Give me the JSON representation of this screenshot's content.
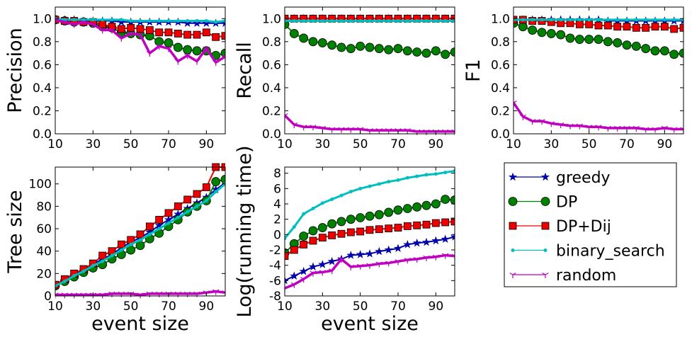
{
  "legend": {
    "entries": [
      {
        "name": "greedy",
        "color": "#0000aa",
        "marker": "star"
      },
      {
        "name": "DP",
        "color": "#008000",
        "marker": "circle"
      },
      {
        "name": "DP+Dij",
        "color": "#ee0000",
        "marker": "square"
      },
      {
        "name": "binary_search",
        "color": "#00bfbf",
        "marker": "dot"
      },
      {
        "name": "random",
        "color": "#bf00bf",
        "marker": "tri"
      }
    ]
  },
  "chart_data": [
    {
      "type": "line",
      "ylabel": "Precision",
      "x": [
        10,
        15,
        20,
        25,
        30,
        35,
        40,
        45,
        50,
        55,
        60,
        65,
        70,
        75,
        80,
        85,
        90,
        95,
        100
      ],
      "xlim": [
        10,
        100
      ],
      "xticks": [
        10,
        30,
        50,
        70,
        90
      ],
      "ylim": [
        0,
        1.1
      ],
      "yticks": [
        {
          "value": 0,
          "label": "0.0"
        },
        0.2,
        0.4,
        0.6,
        0.8,
        {
          "value": 1,
          "label": "1.0"
        }
      ],
      "series": [
        {
          "values": [
            1,
            0.99,
            0.99,
            0.98,
            0.98,
            0.98,
            0.98,
            0.97,
            0.97,
            0.97,
            0.97,
            0.97,
            0.97,
            0.97,
            0.96,
            0.96,
            0.96,
            0.96,
            0.96
          ]
        },
        {
          "values": [
            0.99,
            0.98,
            0.97,
            0.97,
            0.96,
            0.93,
            0.92,
            0.88,
            0.87,
            0.86,
            0.85,
            0.8,
            0.79,
            0.75,
            0.73,
            0.72,
            0.72,
            0.68,
            0.7
          ]
        },
        {
          "values": [
            0.99,
            0.98,
            0.98,
            0.97,
            0.97,
            0.95,
            0.93,
            0.91,
            0.92,
            0.91,
            0.9,
            0.88,
            0.88,
            0.87,
            0.86,
            0.86,
            0.88,
            0.84,
            0.85
          ]
        },
        {
          "values": [
            1,
            0.99,
            0.99,
            0.99,
            0.99,
            0.99,
            0.99,
            0.99,
            0.98,
            0.98,
            0.98,
            0.98,
            0.98,
            0.98,
            0.98,
            0.98,
            0.98,
            0.97,
            0.98
          ]
        },
        {
          "values": [
            0.99,
            0.97,
            0.95,
            0.97,
            0.95,
            0.9,
            0.9,
            0.83,
            0.87,
            0.86,
            0.7,
            0.76,
            0.74,
            0.63,
            0.68,
            0.63,
            0.74,
            0.62,
            0.67
          ]
        }
      ]
    },
    {
      "type": "line",
      "ylabel": "Recall",
      "x": [
        10,
        15,
        20,
        25,
        30,
        35,
        40,
        45,
        50,
        55,
        60,
        65,
        70,
        75,
        80,
        85,
        90,
        95,
        100
      ],
      "xlim": [
        10,
        100
      ],
      "xticks": [
        10,
        30,
        50,
        70,
        90
      ],
      "ylim": [
        0,
        1.1
      ],
      "yticks": [
        {
          "value": 0,
          "label": "0.0"
        },
        0.2,
        0.4,
        0.6,
        0.8,
        {
          "value": 1,
          "label": "1.0"
        }
      ],
      "series": [
        {
          "values": [
            1,
            1,
            1,
            1,
            1,
            1,
            1,
            1,
            1,
            1,
            1,
            1,
            1,
            1,
            1,
            1,
            1,
            1,
            1
          ]
        },
        {
          "values": [
            0.95,
            0.87,
            0.83,
            0.8,
            0.79,
            0.77,
            0.75,
            0.74,
            0.76,
            0.75,
            0.74,
            0.73,
            0.74,
            0.72,
            0.71,
            0.7,
            0.72,
            0.69,
            0.71
          ]
        },
        {
          "values": [
            1,
            1,
            1,
            1,
            1,
            1,
            1,
            1,
            1,
            1,
            1,
            1,
            1,
            1,
            1,
            1,
            1,
            1,
            1
          ]
        },
        {
          "values": [
            0.98,
            0.98,
            0.98,
            0.98,
            0.98,
            0.98,
            0.98,
            0.98,
            0.98,
            0.98,
            0.98,
            0.98,
            0.98,
            0.98,
            0.98,
            0.98,
            0.98,
            0.98,
            0.98
          ]
        },
        {
          "values": [
            0.16,
            0.08,
            0.06,
            0.06,
            0.05,
            0.04,
            0.04,
            0.04,
            0.04,
            0.03,
            0.03,
            0.03,
            0.03,
            0.03,
            0.02,
            0.02,
            0.02,
            0.02,
            0.02
          ]
        }
      ]
    },
    {
      "type": "line",
      "ylabel": "F1",
      "x": [
        10,
        15,
        20,
        25,
        30,
        35,
        40,
        45,
        50,
        55,
        60,
        65,
        70,
        75,
        80,
        85,
        90,
        95,
        100
      ],
      "xlim": [
        10,
        100
      ],
      "xticks": [
        10,
        30,
        50,
        70,
        90
      ],
      "ylim": [
        0,
        1.1
      ],
      "yticks": [
        {
          "value": 0,
          "label": "0.0"
        },
        0.2,
        0.4,
        0.6,
        0.8,
        {
          "value": 1,
          "label": "1.0"
        }
      ],
      "series": [
        {
          "values": [
            0.99,
            0.99,
            0.99,
            0.99,
            0.99,
            0.99,
            0.99,
            0.99,
            0.99,
            0.99,
            0.98,
            0.98,
            0.98,
            0.98,
            0.98,
            0.98,
            0.98,
            0.98,
            0.98
          ]
        },
        {
          "values": [
            0.96,
            0.93,
            0.9,
            0.88,
            0.87,
            0.86,
            0.83,
            0.82,
            0.82,
            0.82,
            0.8,
            0.79,
            0.77,
            0.76,
            0.74,
            0.72,
            0.72,
            0.69,
            0.7
          ]
        },
        {
          "values": [
            0.99,
            0.99,
            0.98,
            0.98,
            0.97,
            0.96,
            0.96,
            0.95,
            0.95,
            0.94,
            0.94,
            0.93,
            0.93,
            0.92,
            0.92,
            0.93,
            0.93,
            0.91,
            0.92
          ]
        },
        {
          "values": [
            0.99,
            0.99,
            0.99,
            0.99,
            0.99,
            0.99,
            0.99,
            0.99,
            0.99,
            0.99,
            0.99,
            0.99,
            0.99,
            0.99,
            0.99,
            0.99,
            0.99,
            0.99,
            0.99
          ]
        },
        {
          "values": [
            0.27,
            0.15,
            0.11,
            0.11,
            0.09,
            0.08,
            0.07,
            0.07,
            0.06,
            0.06,
            0.05,
            0.05,
            0.05,
            0.05,
            0.04,
            0.04,
            0.05,
            0.04,
            0.04
          ]
        }
      ]
    },
    {
      "type": "line",
      "ylabel": "Tree size",
      "xlabel": "event size",
      "x": [
        10,
        15,
        20,
        25,
        30,
        35,
        40,
        45,
        50,
        55,
        60,
        65,
        70,
        75,
        80,
        85,
        90,
        95,
        100
      ],
      "xlim": [
        10,
        100
      ],
      "xticks": [
        10,
        30,
        50,
        70,
        90
      ],
      "ylim": [
        0,
        115
      ],
      "yticks": [
        0,
        20,
        40,
        60,
        80,
        100
      ],
      "series": [
        {
          "values": [
            10,
            14,
            19,
            23,
            28,
            33,
            37,
            43,
            48,
            52,
            57,
            63,
            68,
            73,
            78,
            83,
            88,
            95,
            101
          ]
        },
        {
          "values": [
            9,
            13,
            17,
            21,
            25,
            28,
            33,
            37,
            41,
            45,
            51,
            56,
            62,
            68,
            75,
            80,
            85,
            102,
            104
          ]
        },
        {
          "values": [
            10,
            15,
            20,
            24,
            29,
            36,
            40,
            46,
            50,
            55,
            62,
            68,
            74,
            80,
            86,
            91,
            97,
            115,
            115
          ]
        },
        {
          "values": [
            9,
            13,
            18,
            22,
            27,
            31,
            36,
            41,
            46,
            50,
            55,
            60,
            65,
            70,
            75,
            80,
            85,
            93,
            100
          ]
        },
        {
          "values": [
            1,
            1,
            1,
            1,
            1,
            1,
            2,
            2,
            2,
            1,
            2,
            2,
            2,
            2,
            2,
            2,
            3,
            4,
            3
          ]
        }
      ]
    },
    {
      "type": "line",
      "ylabel": "Log(running time)",
      "xlabel": "event size",
      "x": [
        10,
        15,
        20,
        25,
        30,
        35,
        40,
        45,
        50,
        55,
        60,
        65,
        70,
        75,
        80,
        85,
        90,
        95,
        100
      ],
      "xlim": [
        10,
        100
      ],
      "xticks": [
        10,
        30,
        50,
        70,
        90
      ],
      "ylim": [
        -8,
        8.8
      ],
      "yticks": [
        -8,
        -6,
        -4,
        -2,
        0,
        2,
        4,
        6,
        8
      ],
      "series": [
        {
          "values": [
            -6,
            -5.4,
            -4.8,
            -4.2,
            -3.9,
            -3.5,
            -3.2,
            -2.7,
            -2.6,
            -2.5,
            -2.2,
            -2,
            -1.8,
            -1.3,
            -1.1,
            -1,
            -0.8,
            -0.6,
            -0.3
          ]
        },
        {
          "values": [
            -2.4,
            -1.2,
            -0.2,
            0.5,
            0.9,
            1.4,
            1.7,
            2,
            2.2,
            2.4,
            2.6,
            2.9,
            3.2,
            3.4,
            3.6,
            3.8,
            4,
            4.6,
            4.5
          ]
        },
        {
          "values": [
            -2.8,
            -2,
            -1.3,
            -0.8,
            -0.4,
            -0.1,
            0.1,
            0.3,
            0.4,
            0.6,
            0.7,
            0.8,
            0.9,
            1.1,
            1.2,
            1.3,
            1.5,
            1.6,
            1.7
          ]
        },
        {
          "values": [
            -0.5,
            1,
            2.7,
            3.4,
            4.1,
            4.6,
            5.1,
            5.6,
            6,
            6.3,
            6.6,
            6.9,
            7.1,
            7.4,
            7.6,
            7.8,
            7.9,
            8.1,
            8.3
          ]
        },
        {
          "values": [
            -7,
            -6.5,
            -5.8,
            -5,
            -4.9,
            -4.7,
            -3.2,
            -4.2,
            -4.1,
            -4,
            -3.8,
            -3.7,
            -3.5,
            -3.3,
            -3.2,
            -3,
            -2.9,
            -2.7,
            -2.8
          ]
        }
      ]
    }
  ]
}
